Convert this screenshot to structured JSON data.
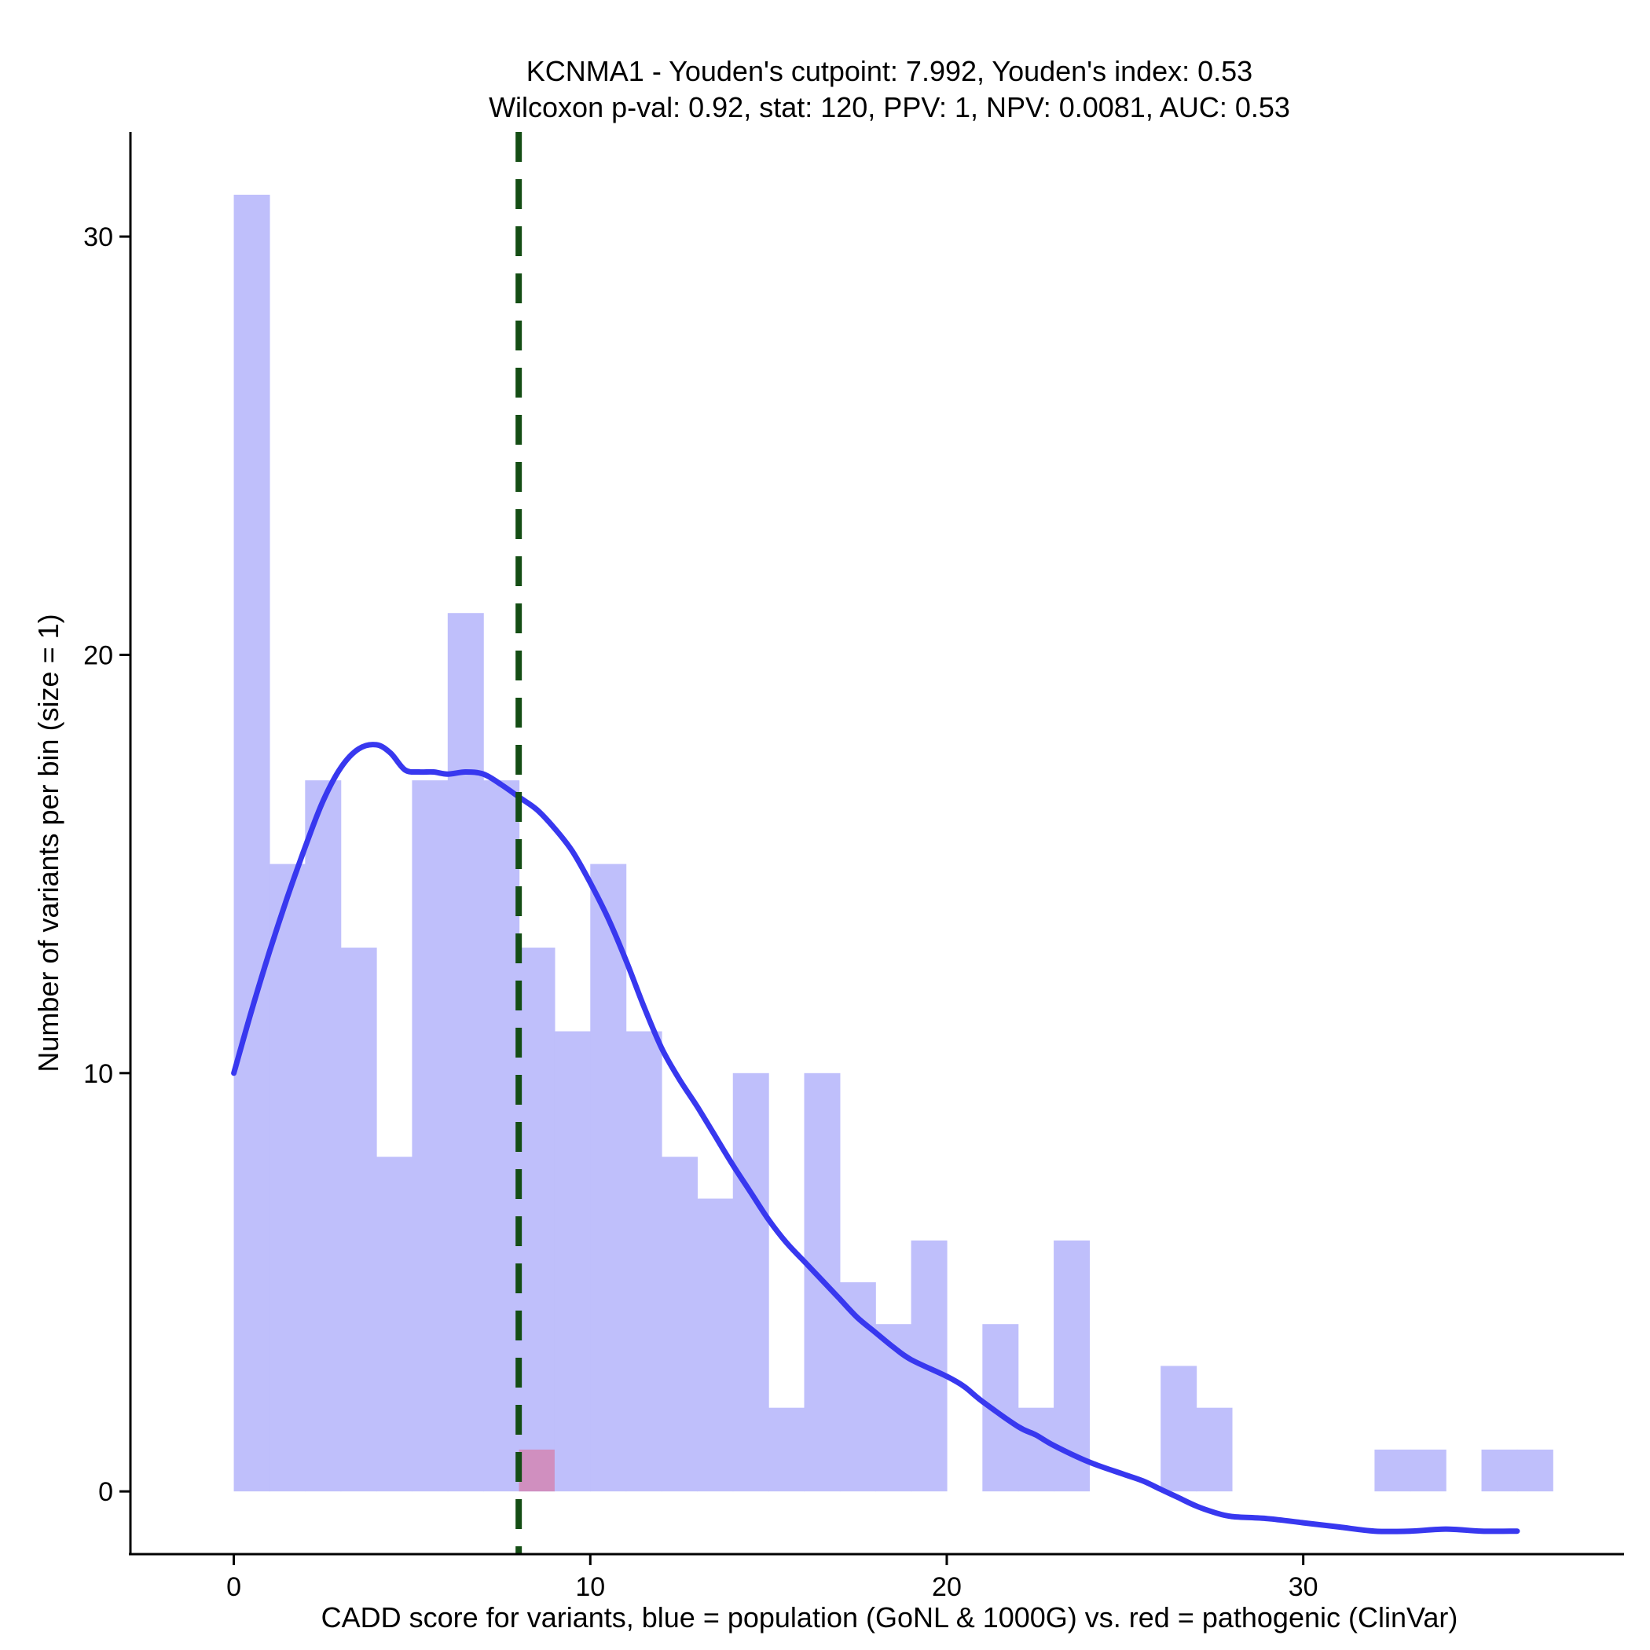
{
  "chart_data": {
    "type": "bar",
    "title_line1": "KCNMA1 - Youden's cutpoint: 7.992, Youden's index: 0.53",
    "title_line2": "Wilcoxon p-val: 0.92, stat: 120, PPV: 1, NPV: 0.0081, AUC: 0.53",
    "xlabel": "CADD score for variants, blue = population (GoNL & 1000G) vs. red = pathogenic (ClinVar)",
    "ylabel": "Number of variants per bin (size = 1)",
    "xlim": [
      -2.9,
      39
    ],
    "ylim": [
      -1.5,
      32.5
    ],
    "x_ticks": [
      0,
      10,
      20,
      30
    ],
    "y_ticks": [
      0,
      10,
      20,
      30
    ],
    "bin_size": 1,
    "population_color": "#bfbffb",
    "pathogenic_color": "#d08fbf",
    "density_color": "#3838ef",
    "cutpoint_color": "#144d14",
    "cutpoint": 7.992,
    "population_bins": [
      {
        "x0": 0,
        "x1": 1,
        "count": 31
      },
      {
        "x0": 1,
        "x1": 2,
        "count": 15
      },
      {
        "x0": 2,
        "x1": 3,
        "count": 17
      },
      {
        "x0": 3,
        "x1": 4,
        "count": 13
      },
      {
        "x0": 4,
        "x1": 5,
        "count": 8
      },
      {
        "x0": 5,
        "x1": 6,
        "count": 17
      },
      {
        "x0": 6,
        "x1": 7,
        "count": 21
      },
      {
        "x0": 7,
        "x1": 8,
        "count": 17
      },
      {
        "x0": 8,
        "x1": 9,
        "count": 13
      },
      {
        "x0": 9,
        "x1": 10,
        "count": 11
      },
      {
        "x0": 10,
        "x1": 11,
        "count": 15
      },
      {
        "x0": 11,
        "x1": 12,
        "count": 11
      },
      {
        "x0": 12,
        "x1": 13,
        "count": 8
      },
      {
        "x0": 13,
        "x1": 14,
        "count": 7
      },
      {
        "x0": 14,
        "x1": 15,
        "count": 10
      },
      {
        "x0": 15,
        "x1": 16,
        "count": 2
      },
      {
        "x0": 16,
        "x1": 17,
        "count": 10
      },
      {
        "x0": 17,
        "x1": 18,
        "count": 5
      },
      {
        "x0": 18,
        "x1": 19,
        "count": 4
      },
      {
        "x0": 19,
        "x1": 20,
        "count": 6
      },
      {
        "x0": 20,
        "x1": 21,
        "count": 0
      },
      {
        "x0": 21,
        "x1": 22,
        "count": 4
      },
      {
        "x0": 22,
        "x1": 23,
        "count": 2
      },
      {
        "x0": 23,
        "x1": 24,
        "count": 6
      },
      {
        "x0": 24,
        "x1": 25,
        "count": 0
      },
      {
        "x0": 25,
        "x1": 26,
        "count": 0
      },
      {
        "x0": 26,
        "x1": 27,
        "count": 3
      },
      {
        "x0": 27,
        "x1": 28,
        "count": 2
      },
      {
        "x0": 32,
        "x1": 33,
        "count": 1
      },
      {
        "x0": 33,
        "x1": 34,
        "count": 1
      },
      {
        "x0": 35,
        "x1": 36,
        "count": 1
      },
      {
        "x0": 36,
        "x1": 37,
        "count": 1
      }
    ],
    "pathogenic_bins": [
      {
        "x0": 8,
        "x1": 9,
        "count": 1
      }
    ],
    "density_curve": [
      [
        0,
        10.0
      ],
      [
        0.5,
        11.5
      ],
      [
        1,
        12.9
      ],
      [
        1.5,
        14.2
      ],
      [
        2,
        15.4
      ],
      [
        2.5,
        16.5
      ],
      [
        3,
        17.3
      ],
      [
        3.5,
        17.75
      ],
      [
        4,
        17.85
      ],
      [
        4.4,
        17.65
      ],
      [
        4.8,
        17.25
      ],
      [
        5.2,
        17.2
      ],
      [
        5.6,
        17.2
      ],
      [
        6,
        17.15
      ],
      [
        6.5,
        17.2
      ],
      [
        7,
        17.15
      ],
      [
        7.5,
        16.9
      ],
      [
        8,
        16.6
      ],
      [
        8.5,
        16.3
      ],
      [
        9,
        15.85
      ],
      [
        9.5,
        15.3
      ],
      [
        10,
        14.55
      ],
      [
        10.5,
        13.7
      ],
      [
        11,
        12.7
      ],
      [
        11.5,
        11.6
      ],
      [
        12,
        10.6
      ],
      [
        12.5,
        9.85
      ],
      [
        13,
        9.2
      ],
      [
        13.5,
        8.5
      ],
      [
        14,
        7.8
      ],
      [
        14.5,
        7.15
      ],
      [
        15,
        6.5
      ],
      [
        15.5,
        5.95
      ],
      [
        16,
        5.5
      ],
      [
        16.5,
        5.05
      ],
      [
        17,
        4.6
      ],
      [
        17.5,
        4.15
      ],
      [
        18,
        3.8
      ],
      [
        18.5,
        3.45
      ],
      [
        19,
        3.15
      ],
      [
        20,
        2.75
      ],
      [
        20.5,
        2.5
      ],
      [
        21,
        2.15
      ],
      [
        22,
        1.55
      ],
      [
        22.5,
        1.35
      ],
      [
        23,
        1.1
      ],
      [
        24,
        0.7
      ],
      [
        25,
        0.4
      ],
      [
        25.5,
        0.25
      ],
      [
        26,
        0.05
      ],
      [
        26.5,
        -0.15
      ],
      [
        27,
        -0.35
      ],
      [
        27.5,
        -0.5
      ],
      [
        28,
        -0.6
      ],
      [
        29,
        -0.65
      ],
      [
        30,
        -0.75
      ],
      [
        31,
        -0.85
      ],
      [
        32,
        -0.95
      ],
      [
        33,
        -0.95
      ],
      [
        34,
        -0.9
      ],
      [
        35,
        -0.95
      ],
      [
        36,
        -0.95
      ]
    ]
  }
}
